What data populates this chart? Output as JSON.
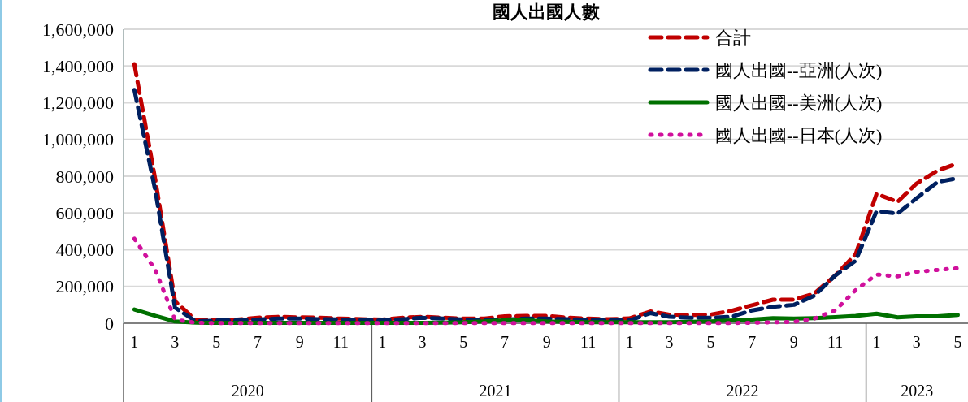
{
  "chart_data": {
    "type": "line",
    "title": "國人出國人數",
    "x": [
      "2020-01",
      "2020-02",
      "2020-03",
      "2020-04",
      "2020-05",
      "2020-06",
      "2020-07",
      "2020-08",
      "2020-09",
      "2020-10",
      "2020-11",
      "2020-12",
      "2021-01",
      "2021-02",
      "2021-03",
      "2021-04",
      "2021-05",
      "2021-06",
      "2021-07",
      "2021-08",
      "2021-09",
      "2021-10",
      "2021-11",
      "2021-12",
      "2022-01",
      "2022-02",
      "2022-03",
      "2022-04",
      "2022-05",
      "2022-06",
      "2022-07",
      "2022-08",
      "2022-09",
      "2022-10",
      "2022-11",
      "2022-12",
      "2023-01",
      "2023-02",
      "2023-03",
      "2023-04",
      "2023-05"
    ],
    "xticks": [
      {
        "value": "2020-01",
        "label": "1"
      },
      {
        "value": "2020-03",
        "label": "3"
      },
      {
        "value": "2020-05",
        "label": "5"
      },
      {
        "value": "2020-07",
        "label": "7"
      },
      {
        "value": "2020-09",
        "label": "9"
      },
      {
        "value": "2020-11",
        "label": "11"
      },
      {
        "value": "2021-01",
        "label": "1"
      },
      {
        "value": "2021-03",
        "label": "3"
      },
      {
        "value": "2021-05",
        "label": "5"
      },
      {
        "value": "2021-07",
        "label": "7"
      },
      {
        "value": "2021-09",
        "label": "9"
      },
      {
        "value": "2021-11",
        "label": "11"
      },
      {
        "value": "2022-01",
        "label": "1"
      },
      {
        "value": "2022-03",
        "label": "3"
      },
      {
        "value": "2022-05",
        "label": "5"
      },
      {
        "value": "2022-07",
        "label": "7"
      },
      {
        "value": "2022-09",
        "label": "9"
      },
      {
        "value": "2022-11",
        "label": "11"
      },
      {
        "value": "2023-01",
        "label": "1"
      },
      {
        "value": "2023-03",
        "label": "3"
      },
      {
        "value": "2023-05",
        "label": "5"
      }
    ],
    "xlim": [
      "2019-12-16",
      "2023-05-16"
    ],
    "ylim": [
      0,
      1600000
    ],
    "yticks": [
      {
        "value": 0,
        "label": "0"
      },
      {
        "value": 200000,
        "label": "200,000"
      },
      {
        "value": 400000,
        "label": "400,000"
      },
      {
        "value": 600000,
        "label": "600,000"
      },
      {
        "value": 800000,
        "label": "800,000"
      },
      {
        "value": 1000000,
        "label": "1,000,000"
      },
      {
        "value": 1200000,
        "label": "1,200,000"
      },
      {
        "value": 1400000,
        "label": "1,400,000"
      },
      {
        "value": 1600000,
        "label": "1,600,000"
      }
    ],
    "grid": "y",
    "legend": "top right",
    "annotations": [
      "2020",
      "2021",
      "2022",
      "2023"
    ],
    "series": [
      {
        "name": "合計",
        "color": "#c00000",
        "line_style": "dashed",
        "values": [
          1410000,
          780000,
          120000,
          15000,
          20000,
          20000,
          30000,
          35000,
          32000,
          30000,
          25000,
          22000,
          20000,
          30000,
          35000,
          30000,
          25000,
          25000,
          38000,
          40000,
          40000,
          30000,
          25000,
          22000,
          26000,
          64000,
          47000,
          45000,
          47000,
          68000,
          98000,
          128000,
          128000,
          162000,
          260000,
          375000,
          704000,
          661000,
          760000,
          830000,
          870000
        ]
      },
      {
        "name": "國人出國--亞洲(人次)",
        "color": "#002060",
        "line_style": "dashed",
        "values": [
          1270000,
          720000,
          85000,
          10000,
          15000,
          15000,
          20000,
          25000,
          25000,
          22000,
          20000,
          18000,
          15000,
          22000,
          30000,
          25000,
          20000,
          18000,
          20000,
          25000,
          25000,
          22000,
          18000,
          15000,
          15000,
          55000,
          35000,
          30000,
          30000,
          35000,
          70000,
          90000,
          100000,
          150000,
          260000,
          340000,
          610000,
          597000,
          680000,
          768000,
          790000
        ]
      },
      {
        "name": "國人出國--美洲(人次)",
        "color": "#007000",
        "line_style": "solid",
        "values": [
          75000,
          40000,
          10000,
          3000,
          2000,
          2000,
          2000,
          2000,
          2000,
          2000,
          2000,
          2000,
          2000,
          2000,
          2000,
          3000,
          5000,
          10000,
          15000,
          15000,
          10000,
          8000,
          5000,
          5000,
          5000,
          5000,
          5000,
          8000,
          10000,
          15000,
          20000,
          28000,
          25000,
          28000,
          33000,
          40000,
          52000,
          32000,
          38000,
          38000,
          45000
        ]
      },
      {
        "name": "國人出國--日本(人次)",
        "color": "#d0109c",
        "line_style": "dotted",
        "values": [
          460000,
          290000,
          20000,
          2000,
          1000,
          1000,
          1000,
          1000,
          1000,
          1000,
          1000,
          1000,
          1000,
          1000,
          1000,
          1000,
          1000,
          1000,
          1000,
          1000,
          1000,
          1000,
          1000,
          1000,
          1000,
          1000,
          1000,
          1000,
          1000,
          1000,
          3000,
          5000,
          8000,
          25000,
          70000,
          180000,
          265000,
          255000,
          280000,
          290000,
          300000
        ]
      }
    ]
  }
}
